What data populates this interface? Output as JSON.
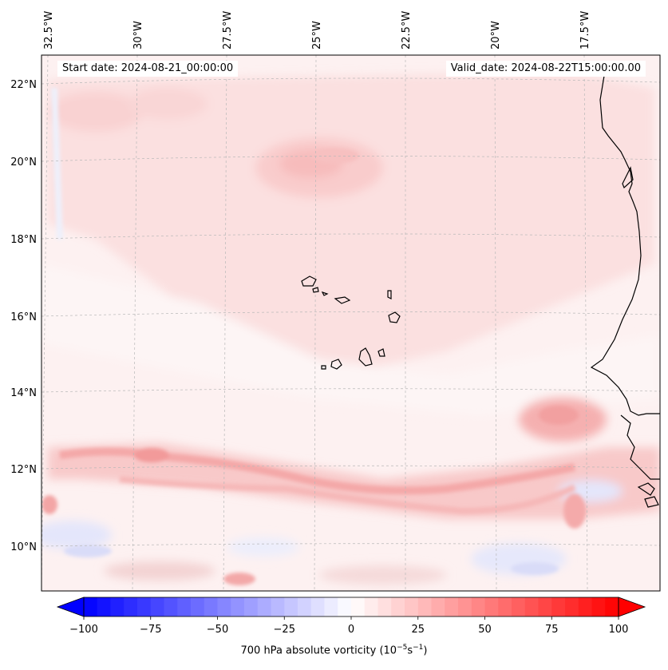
{
  "map": {
    "region": "Cape Verde / West African coast",
    "field": "700 hPa absolute vorticity",
    "start_date_label": "Start date: 2024-08-21_00:00:00",
    "valid_date_label": "Valid_date: 2024-08-22T15:00:00.00",
    "lon_labels": [
      "32.5°W",
      "30°W",
      "27.5°W",
      "25°W",
      "22.5°W",
      "20°W",
      "17.5°W"
    ],
    "lat_labels": [
      "22°N",
      "20°N",
      "18°N",
      "16°N",
      "14°N",
      "12°N",
      "10°N"
    ],
    "colorbar": {
      "label_prefix": "700 hPa absolute vorticity (10",
      "label_exp1": "−5",
      "label_mid": "s",
      "label_exp2": "−1",
      "label_suffix": ")",
      "ticks": [
        "−100",
        "−75",
        "−50",
        "−25",
        "0",
        "25",
        "50",
        "75",
        "100"
      ],
      "min": -100,
      "max": 100,
      "levels": 40,
      "cmap": "bwr",
      "low_color": "#0000ff",
      "high_color": "#ff0000"
    }
  }
}
